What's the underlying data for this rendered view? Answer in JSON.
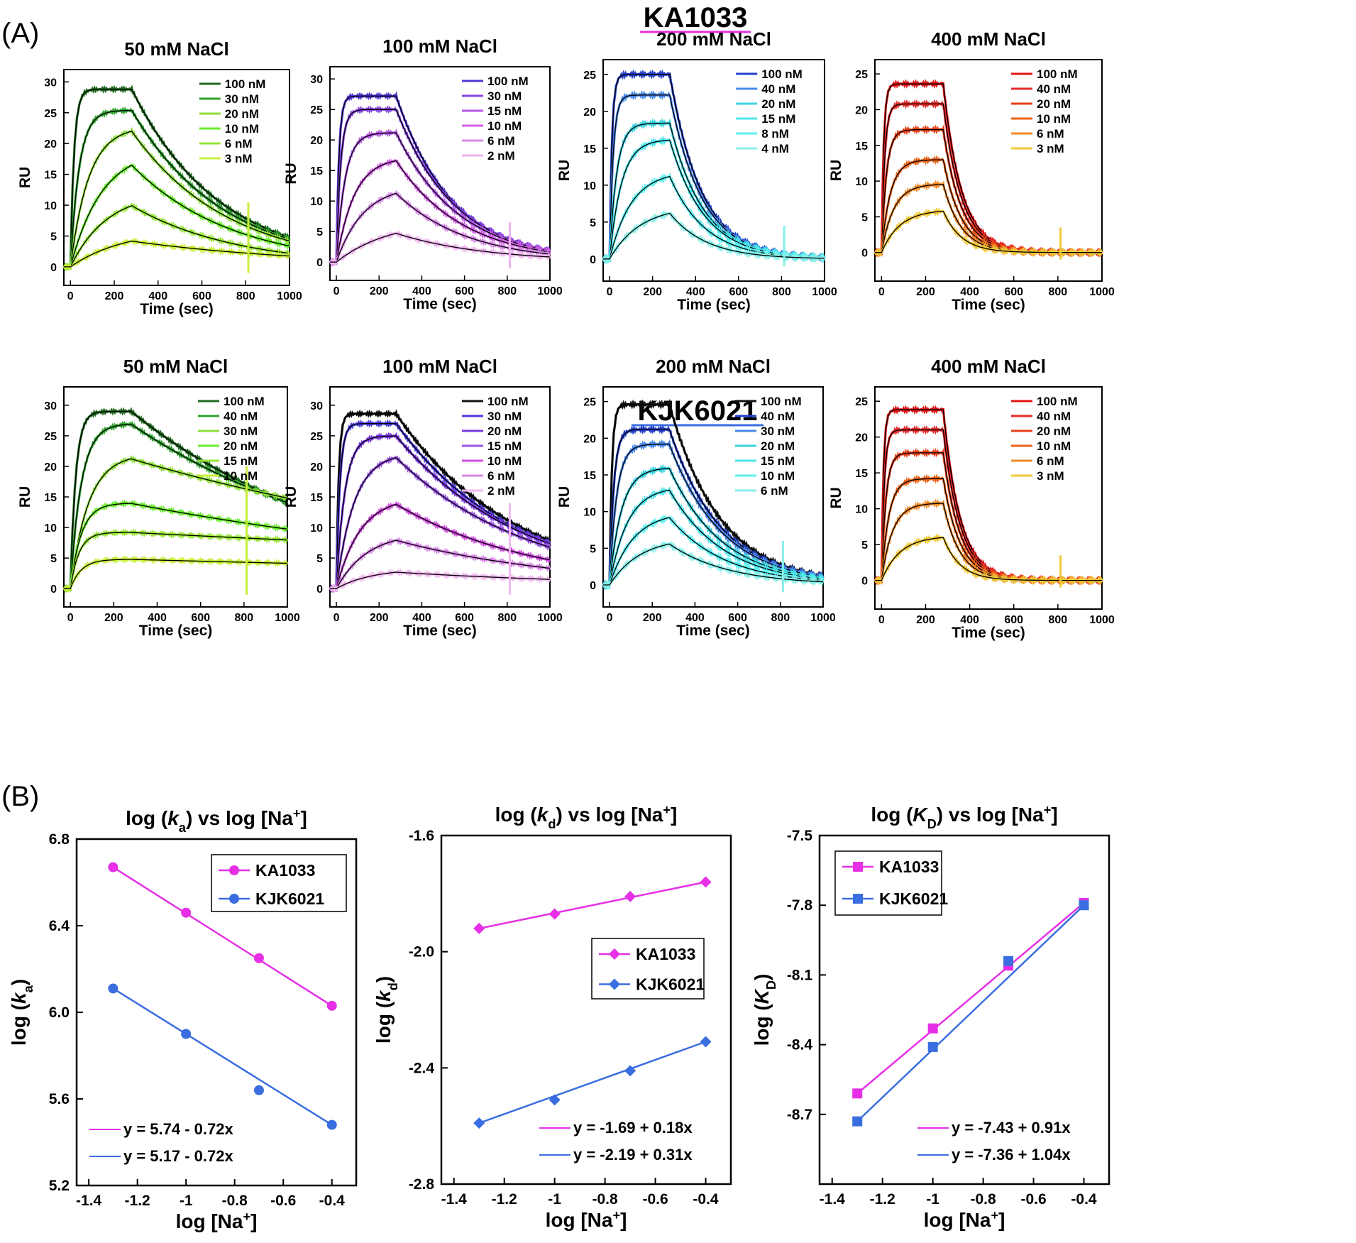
{
  "figure": {
    "panel_a_label": "(A)",
    "panel_b_label": "(B)",
    "ka_title": "KA1033",
    "kjk_title": "KJK6021",
    "ka_color": "#e62fe6",
    "kjk_color": "#3a6ee0"
  },
  "chart_data": [
    {
      "id": "ka50",
      "type": "line",
      "title": "50 mM NaCl",
      "xlabel": "Time (sec)",
      "ylabel": "RU",
      "xlim": [
        -30,
        1000
      ],
      "ylim": [
        -3,
        32
      ],
      "xticks": [
        "0",
        "200",
        "400",
        "600",
        "800",
        "1000"
      ],
      "yticks": [
        "0",
        "5",
        "10",
        "15",
        "20",
        "25",
        "30"
      ],
      "spike": 10.5,
      "series": [
        {
          "name": "100 nM",
          "plateau": 28.8,
          "kon": 0.06,
          "koff": 0.0025,
          "color": "#1f6b1f"
        },
        {
          "name": "30 nM",
          "plateau": 25.4,
          "kon": 0.025,
          "koff": 0.0024,
          "color": "#2fa32f"
        },
        {
          "name": "20 nM",
          "plateau": 22.8,
          "kon": 0.012,
          "koff": 0.0023,
          "color": "#8fe03a"
        },
        {
          "name": "10 nM",
          "plateau": 19.2,
          "kon": 0.007,
          "koff": 0.0022,
          "color": "#6aec2f"
        },
        {
          "name": "6 nM",
          "plateau": 12.2,
          "kon": 0.006,
          "koff": 0.0021,
          "color": "#98e63a"
        },
        {
          "name": "3 nM",
          "plateau": 6.2,
          "kon": 0.004,
          "koff": 0.0012,
          "color": "#c8ef3a"
        }
      ]
    },
    {
      "id": "ka100",
      "type": "line",
      "title": "100 mM NaCl",
      "xlabel": "Time (sec)",
      "ylabel": "RU",
      "xlim": [
        -30,
        1000
      ],
      "ylim": [
        -3,
        32
      ],
      "xticks": [
        "0",
        "200",
        "400",
        "600",
        "800",
        "1000"
      ],
      "yticks": [
        "0",
        "5",
        "10",
        "15",
        "20",
        "25",
        "30"
      ],
      "spike": 6.5,
      "series": [
        {
          "name": "100 nM",
          "plateau": 27.2,
          "kon": 0.08,
          "koff": 0.0038,
          "color": "#5533d6"
        },
        {
          "name": "30 nM",
          "plateau": 25.0,
          "kon": 0.05,
          "koff": 0.0036,
          "color": "#8a44e0"
        },
        {
          "name": "15 nM",
          "plateau": 21.2,
          "kon": 0.025,
          "koff": 0.0034,
          "color": "#b559e6"
        },
        {
          "name": "10 nM",
          "plateau": 17.2,
          "kon": 0.012,
          "koff": 0.0032,
          "color": "#d45fe6"
        },
        {
          "name": "6 nM",
          "plateau": 12.6,
          "kon": 0.008,
          "koff": 0.003,
          "color": "#d88ae8"
        },
        {
          "name": "2 nM",
          "plateau": 7.0,
          "kon": 0.004,
          "koff": 0.0024,
          "color": "#efb4ee"
        }
      ]
    },
    {
      "id": "ka200",
      "type": "line",
      "title": "200 mM NaCl",
      "xlabel": "Time (sec)",
      "ylabel": "RU",
      "xlim": [
        -30,
        1000
      ],
      "ylim": [
        -3,
        27
      ],
      "xticks": [
        "0",
        "200",
        "400",
        "600",
        "800",
        "1000"
      ],
      "yticks": [
        "0",
        "5",
        "10",
        "15",
        "20",
        "25"
      ],
      "spike": 4.5,
      "series": [
        {
          "name": "100 nM",
          "plateau": 25.0,
          "kon": 0.09,
          "koff": 0.0068,
          "color": "#2440c8"
        },
        {
          "name": "40 nM",
          "plateau": 22.2,
          "kon": 0.06,
          "koff": 0.0066,
          "color": "#4a88e8"
        },
        {
          "name": "20 nM",
          "plateau": 18.4,
          "kon": 0.03,
          "koff": 0.0064,
          "color": "#3bd3e0"
        },
        {
          "name": "15 nM",
          "plateau": 16.2,
          "kon": 0.018,
          "koff": 0.0062,
          "color": "#4de5ec"
        },
        {
          "name": "8 nM",
          "plateau": 11.9,
          "kon": 0.01,
          "koff": 0.006,
          "color": "#5cf0f0"
        },
        {
          "name": "4 nM",
          "plateau": 7.2,
          "kon": 0.007,
          "koff": 0.0058,
          "color": "#86efe8"
        }
      ]
    },
    {
      "id": "ka400",
      "type": "line",
      "title": "400 mM NaCl",
      "xlabel": "Time (sec)",
      "ylabel": "RU",
      "xlim": [
        -30,
        1000
      ],
      "ylim": [
        -4,
        27
      ],
      "xticks": [
        "0",
        "200",
        "400",
        "600",
        "800",
        "1000"
      ],
      "yticks": [
        "0",
        "5",
        "10",
        "15",
        "20",
        "25"
      ],
      "spike": 3.5,
      "series": [
        {
          "name": "100 nM",
          "plateau": 23.6,
          "kon": 0.1,
          "koff": 0.012,
          "color": "#e01414"
        },
        {
          "name": "40 nM",
          "plateau": 20.8,
          "kon": 0.07,
          "koff": 0.012,
          "color": "#e62a2a"
        },
        {
          "name": "20 nM",
          "plateau": 17.2,
          "kon": 0.045,
          "koff": 0.012,
          "color": "#e84018"
        },
        {
          "name": "10 nM",
          "plateau": 13.0,
          "kon": 0.025,
          "koff": 0.012,
          "color": "#ec6418"
        },
        {
          "name": "6 nM",
          "plateau": 9.6,
          "kon": 0.018,
          "koff": 0.012,
          "color": "#f08a2a"
        },
        {
          "name": "3 nM",
          "plateau": 6.0,
          "kon": 0.012,
          "koff": 0.012,
          "color": "#f0c83a"
        }
      ]
    },
    {
      "id": "kjk50",
      "type": "line",
      "title": "50 mM NaCl",
      "xlabel": "Time (sec)",
      "ylabel": "RU",
      "xlim": [
        -30,
        1000
      ],
      "ylim": [
        -3,
        33
      ],
      "xticks": [
        "0",
        "200",
        "400",
        "600",
        "800",
        "1000"
      ],
      "yticks": [
        "0",
        "5",
        "10",
        "15",
        "20",
        "25",
        "30"
      ],
      "spike": 20,
      "series": [
        {
          "name": "100 nM",
          "plateau": 29.0,
          "kon": 0.04,
          "koff": 0.001,
          "color": "#1f6b1f"
        },
        {
          "name": "40 nM",
          "plateau": 27.0,
          "kon": 0.02,
          "koff": 0.0009,
          "color": "#2fa32f"
        },
        {
          "name": "30 nM",
          "plateau": 22.0,
          "kon": 0.012,
          "koff": 0.0005,
          "color": "#8fe03a"
        },
        {
          "name": "20 nM",
          "plateau": 14.0,
          "kon": 0.02,
          "koff": 0.0005,
          "color": "#6aec2f"
        },
        {
          "name": "15 nM",
          "plateau": 9.2,
          "kon": 0.025,
          "koff": 0.0002,
          "color": "#98e63a"
        },
        {
          "name": "10 nM",
          "plateau": 4.8,
          "kon": 0.02,
          "koff": 0.0002,
          "color": "#c8ef3a"
        }
      ]
    },
    {
      "id": "kjk100",
      "type": "line",
      "title": "100 mM NaCl",
      "xlabel": "Time (sec)",
      "ylabel": "RU",
      "xlim": [
        -30,
        1000
      ],
      "ylim": [
        -3,
        33
      ],
      "xticks": [
        "0",
        "200",
        "400",
        "600",
        "800",
        "1000"
      ],
      "yticks": [
        "0",
        "5",
        "10",
        "15",
        "20",
        "25",
        "30"
      ],
      "spike": 14,
      "series": [
        {
          "name": "100 nM",
          "plateau": 28.6,
          "kon": 0.09,
          "koff": 0.0018,
          "color": "#111111"
        },
        {
          "name": "30 nM",
          "plateau": 27.0,
          "kon": 0.06,
          "koff": 0.0018,
          "color": "#4a3ae0"
        },
        {
          "name": "20 nM",
          "plateau": 25.0,
          "kon": 0.025,
          "koff": 0.0017,
          "color": "#7a3ae0"
        },
        {
          "name": "15 nM",
          "plateau": 22.2,
          "kon": 0.012,
          "koff": 0.0016,
          "color": "#9a55e6"
        },
        {
          "name": "10 nM",
          "plateau": 15.0,
          "kon": 0.009,
          "koff": 0.0015,
          "color": "#d04ee0"
        },
        {
          "name": "6 nM",
          "plateau": 9.2,
          "kon": 0.007,
          "koff": 0.0012,
          "color": "#d888e6"
        },
        {
          "name": "2 nM",
          "plateau": 3.3,
          "kon": 0.006,
          "koff": 0.0008,
          "color": "#f0b8ee"
        }
      ]
    },
    {
      "id": "kjk200",
      "type": "line",
      "title": "200 mM NaCl",
      "xlabel": "Time (sec)",
      "ylabel": "RU",
      "xlim": [
        -30,
        1000
      ],
      "ylim": [
        -3,
        27
      ],
      "xticks": [
        "0",
        "200",
        "400",
        "600",
        "800",
        "1000"
      ],
      "yticks": [
        "0",
        "5",
        "10",
        "15",
        "20",
        "25"
      ],
      "spike": 6,
      "series": [
        {
          "name": "100 nM",
          "plateau": 24.6,
          "kon": 0.09,
          "koff": 0.0042,
          "color": "#111111"
        },
        {
          "name": "40 nM",
          "plateau": 21.2,
          "kon": 0.05,
          "koff": 0.0041,
          "color": "#2440c8"
        },
        {
          "name": "30 nM",
          "plateau": 19.2,
          "kon": 0.03,
          "koff": 0.004,
          "color": "#4a88e8"
        },
        {
          "name": "20 nM",
          "plateau": 16.0,
          "kon": 0.018,
          "koff": 0.004,
          "color": "#3bd3e0"
        },
        {
          "name": "15 nM",
          "plateau": 13.4,
          "kon": 0.012,
          "koff": 0.0039,
          "color": "#4de5ec"
        },
        {
          "name": "10 nM",
          "plateau": 10.0,
          "kon": 0.009,
          "koff": 0.0038,
          "color": "#5cf0f0"
        },
        {
          "name": "6 nM",
          "plateau": 6.5,
          "kon": 0.007,
          "koff": 0.0036,
          "color": "#86efe8"
        }
      ]
    },
    {
      "id": "kjk400",
      "type": "line",
      "title": "400 mM NaCl",
      "xlabel": "Time (sec)",
      "ylabel": "RU",
      "xlim": [
        -30,
        1000
      ],
      "ylim": [
        -4,
        27
      ],
      "xticks": [
        "0",
        "200",
        "400",
        "600",
        "800",
        "1000"
      ],
      "yticks": [
        "0",
        "5",
        "10",
        "15",
        "20",
        "25"
      ],
      "spike": 3.5,
      "series": [
        {
          "name": "100 nM",
          "plateau": 23.8,
          "kon": 0.11,
          "koff": 0.013,
          "color": "#e01414"
        },
        {
          "name": "40 nM",
          "plateau": 21.0,
          "kon": 0.08,
          "koff": 0.013,
          "color": "#e62a2a"
        },
        {
          "name": "20 nM",
          "plateau": 17.8,
          "kon": 0.05,
          "koff": 0.013,
          "color": "#e84018"
        },
        {
          "name": "10 nM",
          "plateau": 14.2,
          "kon": 0.03,
          "koff": 0.013,
          "color": "#ec6418"
        },
        {
          "name": "6 nM",
          "plateau": 10.8,
          "kon": 0.02,
          "koff": 0.013,
          "color": "#f08a2a"
        },
        {
          "name": "3 nM",
          "plateau": 6.2,
          "kon": 0.012,
          "koff": 0.013,
          "color": "#f0c83a"
        }
      ]
    },
    {
      "id": "logka",
      "type": "scatter",
      "title_pre": "log (",
      "title_var": "k",
      "title_sub": "a",
      "title_post": ") vs log [Na",
      "title_sup": "+",
      "title_end": "]",
      "ylabel_pre": "log (",
      "ylabel_var": "k",
      "ylabel_sub": "a",
      "ylabel_post": ")",
      "xlabel_pre": "log [Na",
      "xlabel_sup": "+",
      "xlabel_post": "]",
      "xlim": [
        -1.45,
        -0.3
      ],
      "ylim": [
        5.2,
        6.8
      ],
      "xticks": [
        -1.4,
        -1.2,
        -1,
        -0.8,
        -0.6,
        -0.4
      ],
      "xtick_labels": [
        "-1.4",
        "-1.2",
        "-1",
        "-0.8",
        "-0.6",
        "-0.4"
      ],
      "yticks": [
        5.2,
        5.6,
        6.0,
        6.4,
        6.8
      ],
      "ytick_labels": [
        "5.2",
        "5.6",
        "6.0",
        "6.4",
        "6.8"
      ],
      "marker": "circle",
      "x": [
        -1.3,
        -1,
        -0.7,
        -0.4
      ],
      "series": [
        {
          "name": "KA1033",
          "values": [
            6.67,
            6.46,
            6.25,
            6.03
          ],
          "fit": "y = 5.74 - 0.72x",
          "a": 5.74,
          "b": -0.72,
          "color": "#e62fe6"
        },
        {
          "name": "KJK6021",
          "values": [
            6.11,
            5.9,
            5.64,
            5.48
          ],
          "fit": "y = 5.17 - 0.72x",
          "a": 5.17,
          "b": -0.72,
          "color": "#3a6ee0"
        }
      ]
    },
    {
      "id": "logkd",
      "type": "scatter",
      "title_pre": "log (",
      "title_var": "k",
      "title_sub": "d",
      "title_post": ") vs log [Na",
      "title_sup": "+",
      "title_end": "]",
      "ylabel_pre": "log (",
      "ylabel_var": "k",
      "ylabel_sub": "d",
      "ylabel_post": ")",
      "xlabel_pre": "log [Na",
      "xlabel_sup": "+",
      "xlabel_post": "]",
      "xlim": [
        -1.45,
        -0.3
      ],
      "ylim": [
        -2.8,
        -1.6
      ],
      "xticks": [
        -1.4,
        -1.2,
        -1,
        -0.8,
        -0.6,
        -0.4
      ],
      "xtick_labels": [
        "-1.4",
        "-1.2",
        "-1",
        "-0.8",
        "-0.6",
        "-0.4"
      ],
      "yticks": [
        -2.8,
        -2.4,
        -2.0,
        -1.6
      ],
      "ytick_labels": [
        "-2.8",
        "-2.4",
        "-2.0",
        "-1.6"
      ],
      "marker": "diamond",
      "x": [
        -1.3,
        -1,
        -0.7,
        -0.4
      ],
      "series": [
        {
          "name": "KA1033",
          "values": [
            -1.92,
            -1.87,
            -1.81,
            -1.76
          ],
          "fit": "y = -1.69 + 0.18x",
          "a": -1.69,
          "b": 0.18,
          "color": "#e62fe6"
        },
        {
          "name": "KJK6021",
          "values": [
            -2.59,
            -2.51,
            -2.41,
            -2.31
          ],
          "fit": "y = -2.19 + 0.31x",
          "a": -2.19,
          "b": 0.31,
          "color": "#3a6ee0"
        }
      ]
    },
    {
      "id": "logKD",
      "type": "scatter",
      "title_pre": "log (",
      "title_var": "K",
      "title_sub": "D",
      "title_post": ") vs log [Na",
      "title_sup": "+",
      "title_end": "]",
      "ylabel_pre": "log (",
      "ylabel_var": "K",
      "ylabel_sub": "D",
      "ylabel_post": ")",
      "xlabel_pre": "log [Na",
      "xlabel_sup": "+",
      "xlabel_post": "]",
      "xlim": [
        -1.45,
        -0.3
      ],
      "ylim": [
        -9.0,
        -7.5
      ],
      "xticks": [
        -1.4,
        -1.2,
        -1,
        -0.8,
        -0.6,
        -0.4
      ],
      "xtick_labels": [
        "-1.4",
        "-1.2",
        "-1",
        "-0.8",
        "-0.6",
        "-0.4"
      ],
      "yticks": [
        -8.7,
        -8.4,
        -8.1,
        -7.8,
        -7.5
      ],
      "ytick_labels": [
        "-8.7",
        "-8.4",
        "-8.1",
        "-7.8",
        "-7.5"
      ],
      "marker": "square",
      "x": [
        -1.3,
        -1,
        -0.7,
        -0.4
      ],
      "series": [
        {
          "name": "KA1033",
          "values": [
            -8.61,
            -8.33,
            -8.06,
            -7.79
          ],
          "fit": "y = -7.43 + 0.91x",
          "a": -7.43,
          "b": 0.91,
          "color": "#e62fe6"
        },
        {
          "name": "KJK6021",
          "values": [
            -8.73,
            -8.41,
            -8.04,
            -7.8
          ],
          "fit": "y = -7.36 + 1.04x",
          "a": -7.36,
          "b": 1.04,
          "color": "#3a6ee0"
        }
      ]
    }
  ]
}
